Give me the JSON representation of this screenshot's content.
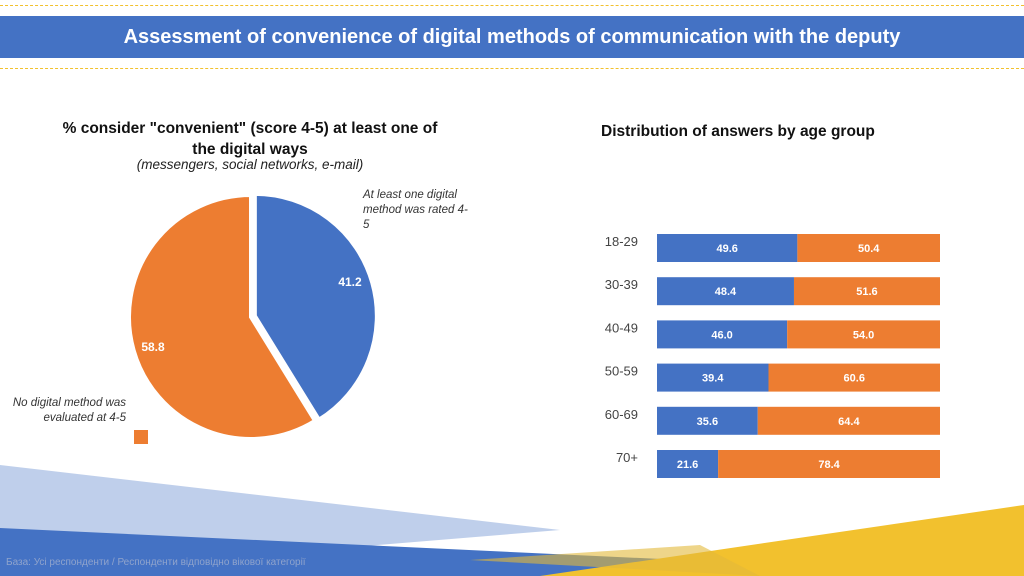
{
  "header": {
    "title": "Assessment of convenience of digital methods of communication with the deputy"
  },
  "colors": {
    "blue": "#4472c4",
    "orange": "#ed7d31",
    "accent_yellow": "#f2c12e"
  },
  "footer": {
    "text": "База: Усі респонденти / Респонденти відповідно вікової категорії"
  },
  "chart_data": [
    {
      "type": "pie",
      "title": "% consider \"convenient\" (score 4-5) at least one of the digital ways",
      "subtitle": "(messengers, social networks, e-mail)",
      "slices": [
        {
          "name": "At least one digital method was rated 4-5",
          "value": 41.2,
          "label": "41.2",
          "color": "#4472c4"
        },
        {
          "name": "No digital method was evaluated at 4-5",
          "value": 58.8,
          "label": "58.8",
          "color": "#ed7d31"
        }
      ]
    },
    {
      "type": "bar",
      "orientation": "horizontal",
      "stacked": true,
      "title": "Distribution of answers by age group",
      "categories": [
        "18-29",
        "30-39",
        "40-49",
        "50-59",
        "60-69",
        "70+"
      ],
      "series": [
        {
          "values": [
            49.6,
            48.4,
            46.0,
            39.4,
            35.6,
            21.6
          ],
          "labels": [
            "49.6",
            "48.4",
            "46.0",
            "39.4",
            "35.6",
            "21.6"
          ],
          "color": "#4472c4"
        },
        {
          "values": [
            50.4,
            51.6,
            54.0,
            60.6,
            64.4,
            78.4
          ],
          "labels": [
            "50.4",
            "51.6",
            "54.0",
            "60.6",
            "64.4",
            "78.4"
          ],
          "color": "#ed7d31"
        }
      ],
      "xlim": [
        0,
        100
      ]
    }
  ]
}
